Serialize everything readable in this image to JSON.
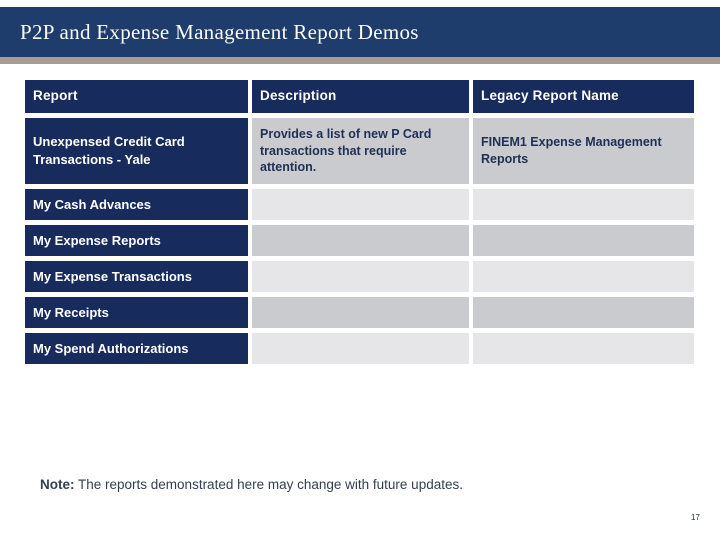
{
  "slide": {
    "title": "P2P and Expense Management Report Demos",
    "page_number": "17"
  },
  "table": {
    "columns": [
      "Report",
      "Description",
      "Legacy Report Name"
    ],
    "rows": [
      {
        "report": "Unexpensed Credit Card Transactions - Yale",
        "description": "Provides a list of new P Card transactions that require attention.",
        "legacy": "FINEM1 Expense Management Reports"
      },
      {
        "report": "My Cash Advances",
        "description": "",
        "legacy": ""
      },
      {
        "report": "My Expense Reports",
        "description": "",
        "legacy": ""
      },
      {
        "report": "My Expense Transactions",
        "description": "",
        "legacy": ""
      },
      {
        "report": "My Receipts",
        "description": "",
        "legacy": ""
      },
      {
        "report": "My Spend Authorizations",
        "description": "",
        "legacy": ""
      }
    ]
  },
  "note": {
    "label": "Note:",
    "text": " The reports demonstrated here may change with future updates."
  },
  "colors": {
    "navy_title": "#1E3C6C",
    "navy_cell": "#172B5C",
    "navy_text": "#1F3055",
    "taupe_bar": "#A59C94",
    "gray_band_dark": "#CACBCE",
    "gray_band_light": "#E6E6E8",
    "note_text": "#333F50"
  }
}
